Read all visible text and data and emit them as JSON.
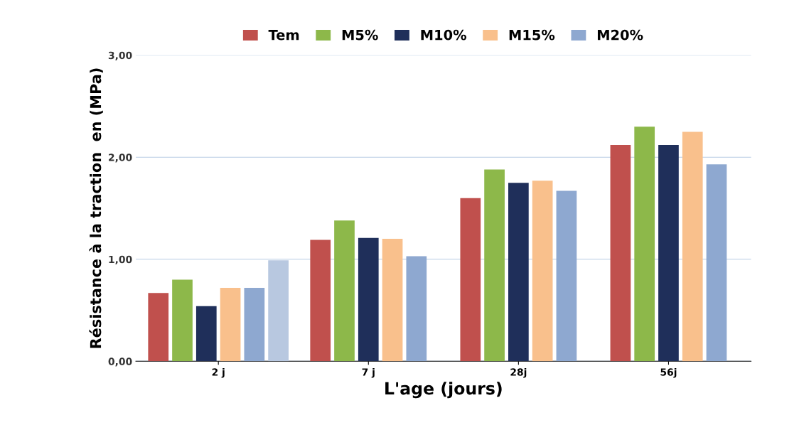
{
  "chart_data": {
    "type": "bar",
    "categories": [
      "2 j",
      "7 j",
      "28j",
      "56j"
    ],
    "xlabel": "L'age (jours)",
    "ylabel": "Résistance à la traction  en (MPa)",
    "ylim": [
      0,
      3
    ],
    "yticks": [
      {
        "value": 0,
        "label": "0,00"
      },
      {
        "value": 1,
        "label": "1,00"
      },
      {
        "value": 2,
        "label": "2,00"
      },
      {
        "value": 3,
        "label": "3,00"
      }
    ],
    "grid": "y",
    "legend": "top",
    "series": [
      {
        "name": "Tem",
        "color": "#c0504d",
        "values": [
          0.67,
          1.19,
          1.6,
          2.12
        ]
      },
      {
        "name": "M5%",
        "color": "#8db84a",
        "values": [
          0.8,
          1.38,
          1.88,
          2.3
        ]
      },
      {
        "name": "M10%",
        "color": "#1f2f5a",
        "values": [
          0.54,
          1.21,
          1.75,
          2.12
        ]
      },
      {
        "name": "M15%",
        "color": "#f9c08c",
        "values": [
          0.72,
          1.2,
          1.77,
          2.25
        ]
      },
      {
        "name": "M20%",
        "color": "#8ea8d0",
        "values": [
          0.72,
          1.03,
          1.67,
          1.93
        ]
      },
      {
        "color": "#b8c8e0",
        "values": [
          0.99,
          null,
          null,
          null
        ]
      }
    ]
  }
}
